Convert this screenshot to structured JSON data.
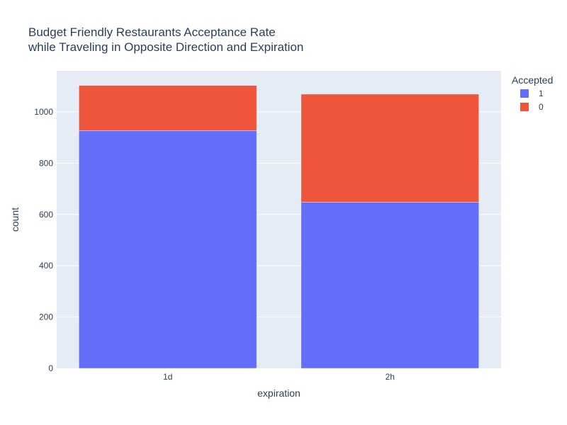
{
  "chart_data": {
    "type": "bar",
    "barmode": "stack",
    "title": "Budget Friendly Restaurants Acceptance Rate",
    "subtitle": "while Traveling in Opposite Direction and Expiration",
    "xlabel": "expiration",
    "ylabel": "count",
    "categories": [
      "1d",
      "2h"
    ],
    "ylim": [
      0,
      1160
    ],
    "yticks": [
      0,
      200,
      400,
      600,
      800,
      1000
    ],
    "grid": true,
    "legend": {
      "title": "Accepted",
      "position": "top-right"
    },
    "series": [
      {
        "name": "1",
        "color": "#636efa",
        "values": [
          927,
          648
        ]
      },
      {
        "name": "0",
        "color": "#ef553b",
        "values": [
          176,
          421
        ]
      }
    ]
  }
}
